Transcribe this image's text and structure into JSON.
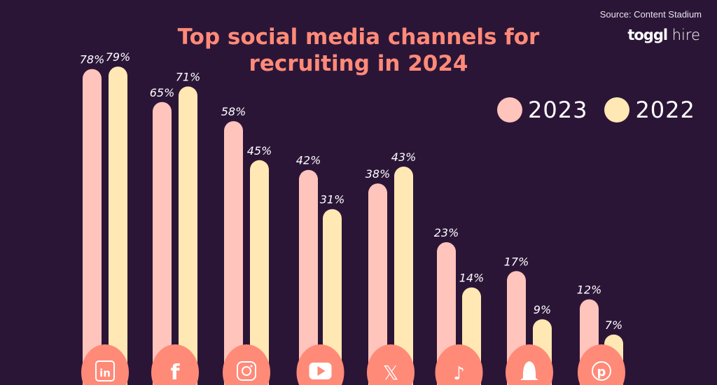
{
  "source": "Source: Content Stadium",
  "logo": {
    "bold": "toggl",
    "light": "hire"
  },
  "chart_data": {
    "type": "bar",
    "title": "Top social media channels for recruiting in 2024",
    "title_lines": [
      "Top social media channels for",
      "recruiting in 2024"
    ],
    "categories": [
      "LinkedIn",
      "Facebook",
      "Instagram",
      "YouTube",
      "X",
      "TikTok",
      "Snapchat",
      "Pinterest"
    ],
    "category_icons": [
      "linkedin-icon",
      "facebook-icon",
      "instagram-icon",
      "youtube-icon",
      "x-icon",
      "tiktok-icon",
      "snapchat-icon",
      "pinterest-icon"
    ],
    "series": [
      {
        "name": "2023",
        "color": "#ffc4bc",
        "values": [
          78,
          65,
          58,
          42,
          38,
          23,
          17,
          12
        ],
        "labels": [
          "78%",
          "65%",
          "58%",
          "42%",
          "38%",
          "23%",
          "17%",
          "12%"
        ]
      },
      {
        "name": "2022",
        "color": "#ffe8b3",
        "values": [
          79,
          71,
          45,
          31,
          43,
          14,
          9,
          7
        ],
        "labels": [
          "79%",
          "71%",
          "45%",
          "31%",
          "43%",
          "14%",
          "9%",
          "7%"
        ]
      }
    ],
    "legend": "top-right",
    "grid": false,
    "unit": "%"
  },
  "colors": {
    "background": "#2b1537",
    "accent": "#ff8a78"
  }
}
